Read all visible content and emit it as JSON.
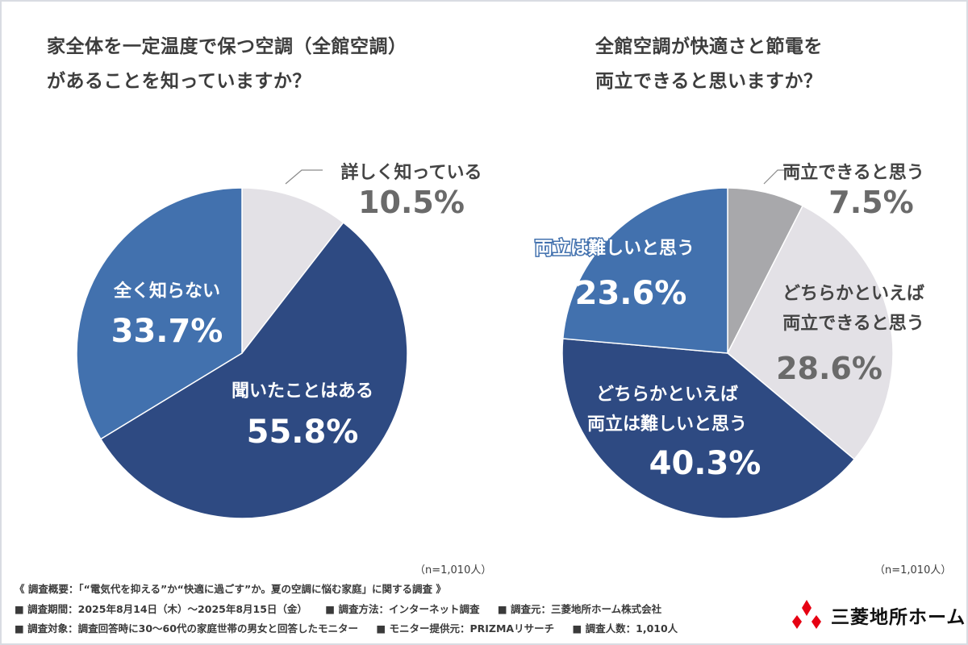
{
  "charts": {
    "left": {
      "title_lines": [
        "家全体を一定温度で保つ空調（全館空調）",
        "があることを知っていますか？"
      ],
      "n": "（n=1,010人）"
    },
    "right": {
      "title_lines": [
        "全館空調が快適さと節電を",
        "両立できると思いますか？"
      ],
      "n": "（n=1,010人）"
    }
  },
  "chart_data": [
    {
      "type": "pie",
      "title": "家全体を一定温度で保つ空調（全館空調）があることを知っていますか？",
      "slices": [
        {
          "label": "詳しく知っている",
          "value": 10.5,
          "value_text": "10.5%",
          "color": "#e3e1e6"
        },
        {
          "label": "聞いたことはある",
          "value": 55.8,
          "value_text": "55.8%",
          "color": "#2e4a82"
        },
        {
          "label": "全く知らない",
          "value": 33.7,
          "value_text": "33.7%",
          "color": "#4271ae"
        }
      ]
    },
    {
      "type": "pie",
      "title": "全館空調が快適さと節電を両立できると思いますか？",
      "slices": [
        {
          "label": "両立できると思う",
          "value": 7.5,
          "value_text": "7.5%",
          "color": "#a8a8ab"
        },
        {
          "label": "どちらかといえば両立できると思う",
          "label_lines": [
            "どちらかといえば",
            "両立できると思う"
          ],
          "value": 28.6,
          "value_text": "28.6%",
          "color": "#e3e1e6"
        },
        {
          "label": "どちらかといえば両立は難しいと思う",
          "label_lines": [
            "どちらかといえば",
            "両立は難しいと思う"
          ],
          "value": 40.3,
          "value_text": "40.3%",
          "color": "#2e4a82"
        },
        {
          "label": "両立は難しいと思う",
          "value": 23.6,
          "value_text": "23.6%",
          "color": "#4271ae"
        }
      ]
    }
  ],
  "footer": {
    "line1": "《 調査概要：「“電気代を抑える”か“快適に過ごす”か。夏の空調に悩む家庭」に関する調査 》",
    "line2_items": [
      "■ 調査期間：2025年8月14日（木）～2025年8月15日（金）",
      "■ 調査方法：インターネット調査",
      "■ 調査元：三菱地所ホーム株式会社"
    ],
    "line3_items": [
      "■ 調査対象：調査回答時に30～60代の家庭世帯の男女と回答したモニター",
      "■ モニター提供元：PRIZMAリサーチ",
      "■ 調査人数：1,010人"
    ]
  },
  "logo": {
    "text": "三菱地所ホーム",
    "icon": "three-diamonds-icon",
    "color": "#e60012"
  }
}
